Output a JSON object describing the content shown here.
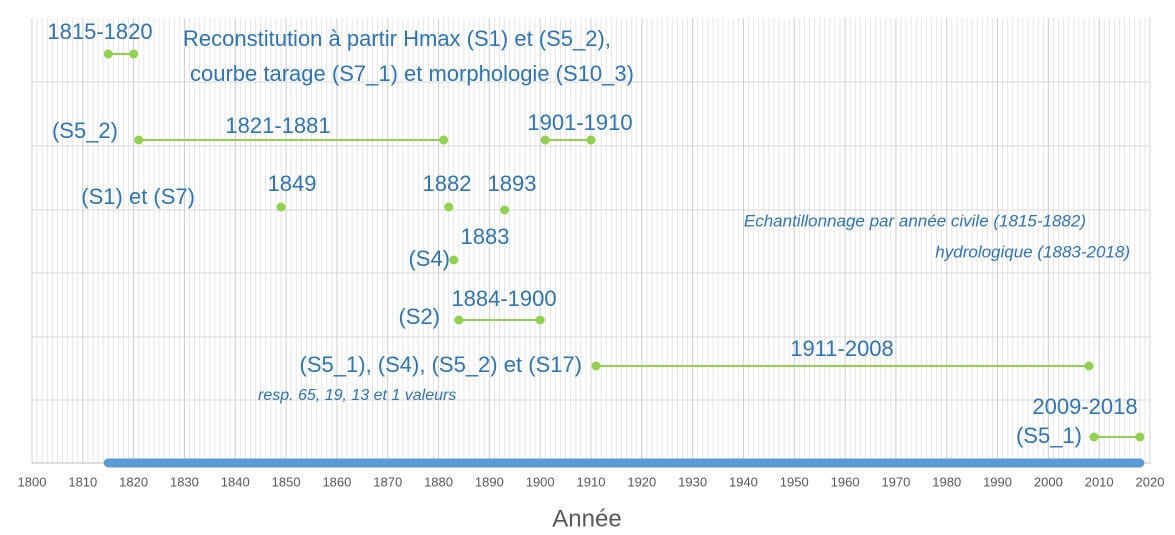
{
  "chart_data": {
    "type": "timeline",
    "xlabel": "Année",
    "xlim": [
      1800,
      2020
    ],
    "xticks": [
      1800,
      1810,
      1820,
      1830,
      1840,
      1850,
      1860,
      1870,
      1880,
      1890,
      1900,
      1910,
      1920,
      1930,
      1940,
      1950,
      1960,
      1970,
      1980,
      1990,
      2000,
      2010,
      2020
    ],
    "grid": true,
    "segment_color": "#92d050",
    "text_color": "#2e75b6",
    "coverage_color": "#5b9bd5",
    "coverage": {
      "start": 1815,
      "end": 2018
    },
    "segments": [
      {
        "label": "1815-1820",
        "start": 1815,
        "end": 1820
      },
      {
        "label": "1821-1881",
        "start": 1821,
        "end": 1881
      },
      {
        "label": "1901-1910",
        "start": 1901,
        "end": 1910
      },
      {
        "label": "1884-1900",
        "start": 1884,
        "end": 1900
      },
      {
        "label": "1911-2008",
        "start": 1911,
        "end": 2008
      },
      {
        "label": "2009-2018",
        "start": 2009,
        "end": 2018
      }
    ],
    "points": [
      {
        "label": "1849",
        "x": 1849
      },
      {
        "label": "1882",
        "x": 1882
      },
      {
        "label": "1893",
        "x": 1893
      },
      {
        "label": "1883",
        "x": 1883
      }
    ],
    "annotations": [
      "Reconstitution à partir Hmax (S1) et (S5_2),",
      "courbe tarage (S7_1) et morphologie (S10_3)",
      "(S5_2)",
      "(S1) et (S7)",
      "(S4)",
      "(S2)",
      "(S5_1), (S4), (S5_2) et (S17)",
      "resp. 65, 19, 13 et 1 valeurs",
      "(S5_1)",
      "Echantillonnage par année civile (1815-1882)",
      "hydrologique (1883-2018)"
    ]
  }
}
